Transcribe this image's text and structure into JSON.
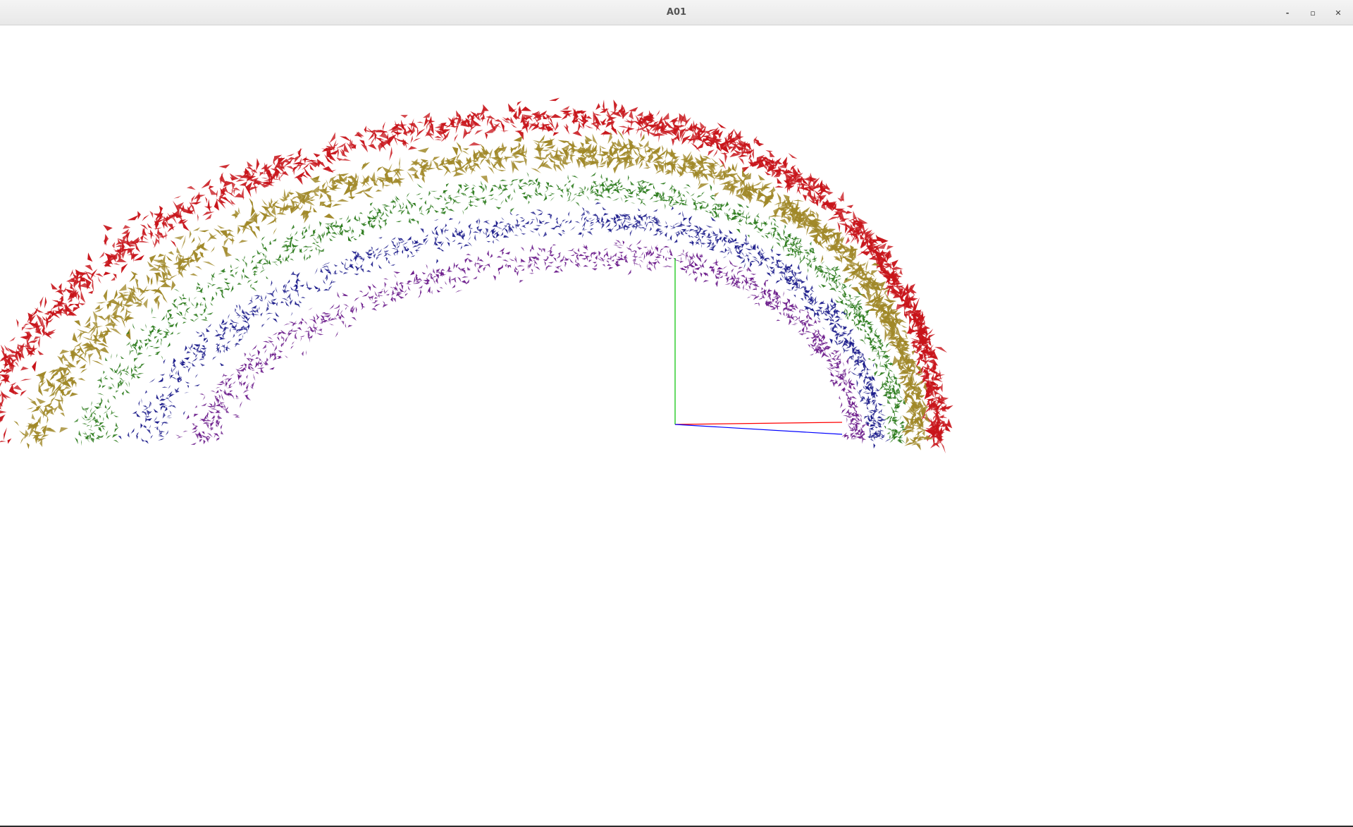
{
  "window": {
    "title": "A01",
    "controls": {
      "minimize_icon": "minimize-icon",
      "maximize_icon": "maximize-icon",
      "close_icon": "close-icon",
      "minimize_glyph": "-",
      "maximize_glyph": "▫",
      "close_glyph": "✕"
    }
  },
  "scene": {
    "background": "#ffffff",
    "particle_bands": [
      {
        "name": "red",
        "color": "#c8141a"
      },
      {
        "name": "gold",
        "color": "#a08828"
      },
      {
        "name": "green",
        "color": "#2a7a1a"
      },
      {
        "name": "blue",
        "color": "#1a1a8a"
      },
      {
        "name": "purple",
        "color": "#6a1a8a"
      }
    ],
    "axes": {
      "x_color": "#ff0000",
      "y_color": "#00c000",
      "z_color": "#0000ff"
    }
  }
}
